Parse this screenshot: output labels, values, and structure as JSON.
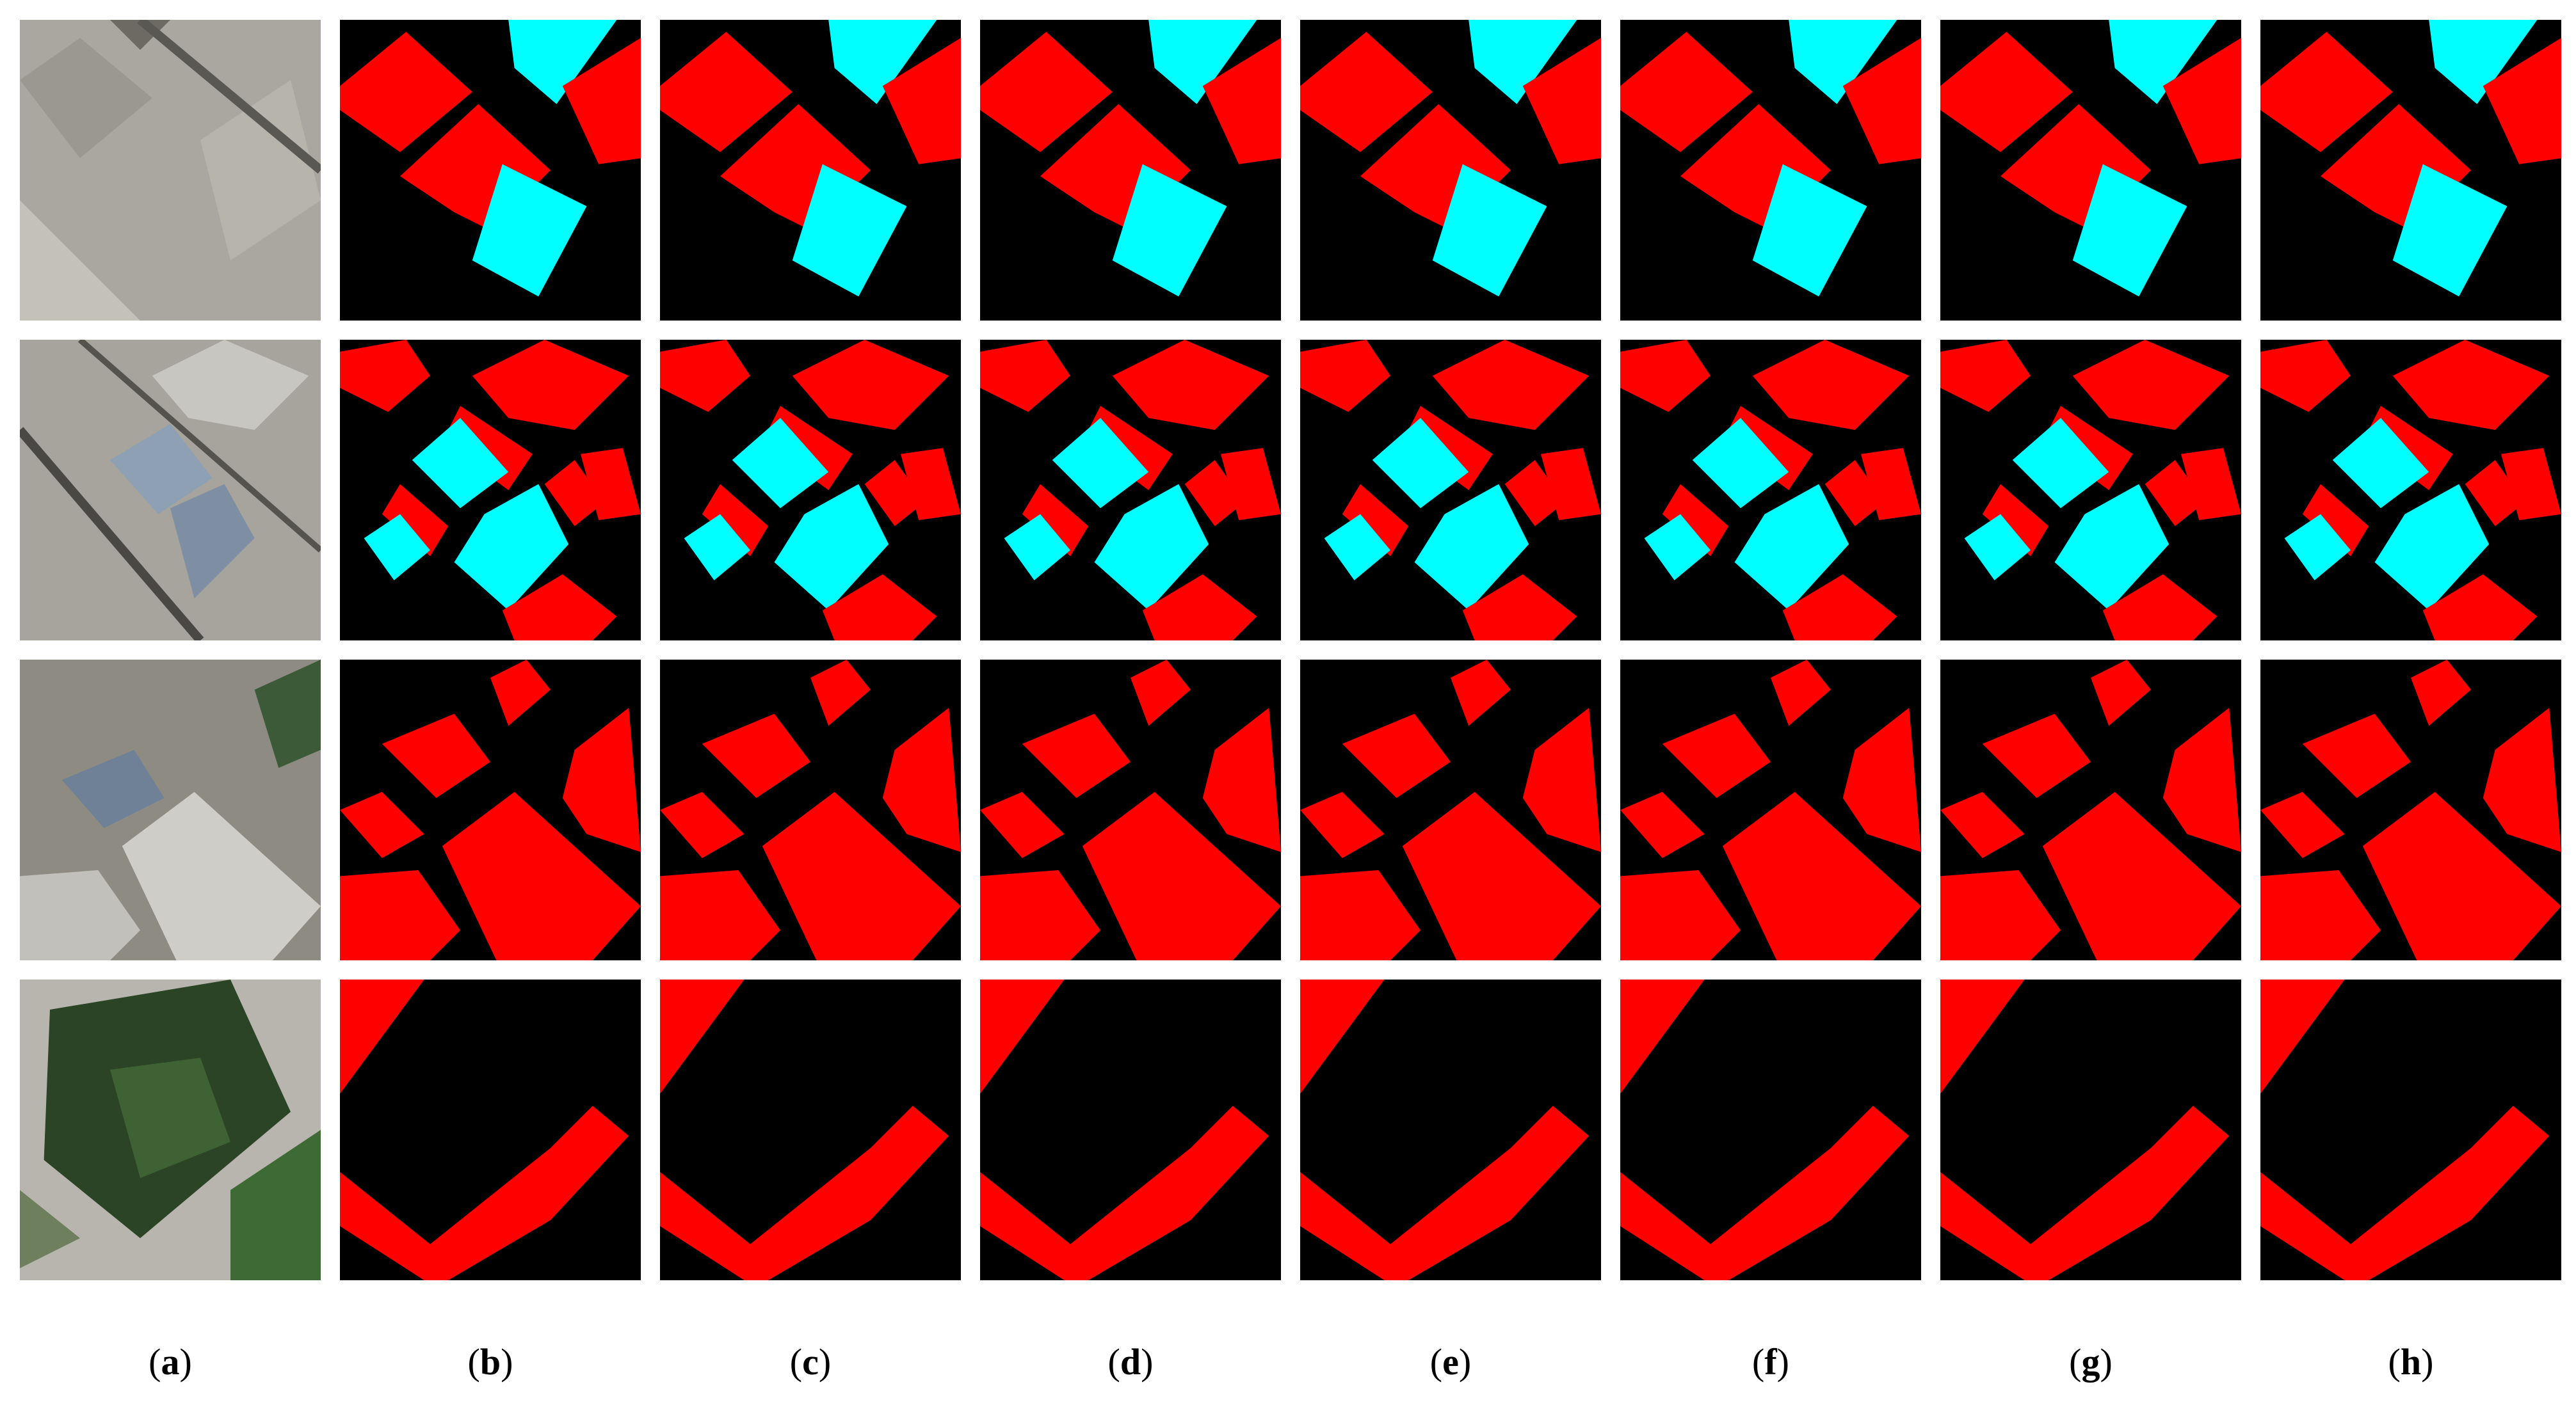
{
  "labels": [
    "a",
    "b",
    "c",
    "d",
    "e",
    "f",
    "g",
    "h"
  ],
  "brackets": [
    "(",
    ")"
  ]
}
